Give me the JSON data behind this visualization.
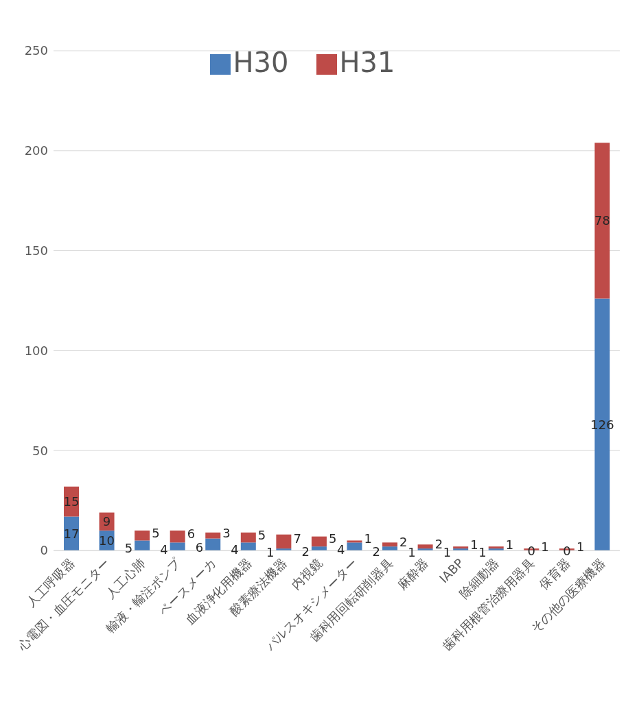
{
  "chart_data": {
    "type": "bar",
    "stacked": true,
    "categories": [
      "人工呼吸器",
      "心電図・血圧モニター",
      "人工心肺",
      "輸液・輸注ポンプ",
      "ペースメーカ",
      "血液浄化用機器",
      "酸素療法機器",
      "内視鏡",
      "パルスオキシメーター",
      "歯科用回転研削器具",
      "麻酔器",
      "IABP",
      "除細動器",
      "歯科用根管治療用器具",
      "保育器",
      "その他の医療機器"
    ],
    "series": [
      {
        "name": "H30",
        "color": "#4a7ebb",
        "values": [
          17,
          10,
          5,
          4,
          6,
          4,
          1,
          2,
          4,
          2,
          1,
          1,
          1,
          0,
          0,
          126
        ]
      },
      {
        "name": "H31",
        "color": "#be4b48",
        "values": [
          15,
          9,
          5,
          6,
          3,
          5,
          7,
          5,
          1,
          2,
          2,
          1,
          1,
          1,
          1,
          78
        ]
      }
    ],
    "ylim": [
      0,
      250
    ],
    "yticks": [
      0,
      50,
      100,
      150,
      200,
      250
    ],
    "grid": "y",
    "legend": "top",
    "data_labels": true
  }
}
